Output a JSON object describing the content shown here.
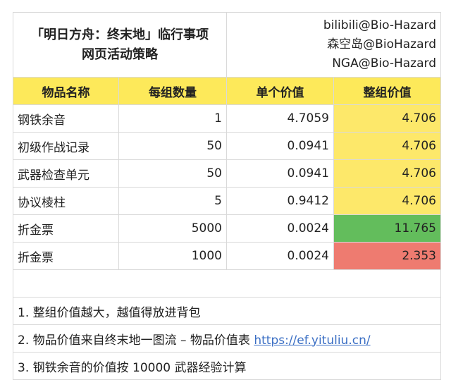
{
  "title": {
    "line1": "「明日方舟：终末地」临行事项",
    "line2": "网页活动策略"
  },
  "credits": [
    "bilibili@Bio-Hazard",
    "森空岛@BioHazard",
    "NGA@Bio-Hazard"
  ],
  "headers": [
    "物品名称",
    "每组数量",
    "单个价值",
    "整组价值"
  ],
  "rows": [
    {
      "name": "钢铁余音",
      "qty": "1",
      "unit": "4.7059",
      "total": "4.706",
      "highlight": "#fde86a"
    },
    {
      "name": "初级作战记录",
      "qty": "50",
      "unit": "0.0941",
      "total": "4.706",
      "highlight": "#fde86a"
    },
    {
      "name": "武器检查单元",
      "qty": "50",
      "unit": "0.0941",
      "total": "4.706",
      "highlight": "#fde86a"
    },
    {
      "name": "协议棱柱",
      "qty": "5",
      "unit": "0.9412",
      "total": "4.706",
      "highlight": "#fde86a"
    },
    {
      "name": "折金票",
      "qty": "5000",
      "unit": "0.0024",
      "total": "11.765",
      "highlight": "#63bd5c"
    },
    {
      "name": "折金票",
      "qty": "1000",
      "unit": "0.0024",
      "total": "2.353",
      "highlight": "#ee7b70"
    }
  ],
  "notes": {
    "n1": "1. 整组价值越大，越值得放进背包",
    "n2": "2. 物品价值来自终末地一图流 – 物品价值表 ",
    "n2_link": "https://ef.yituliu.cn/",
    "n3": "3. 钢铁余音的价值按 10000 武器经验计算"
  },
  "colors": {
    "header": "#fde95a"
  }
}
